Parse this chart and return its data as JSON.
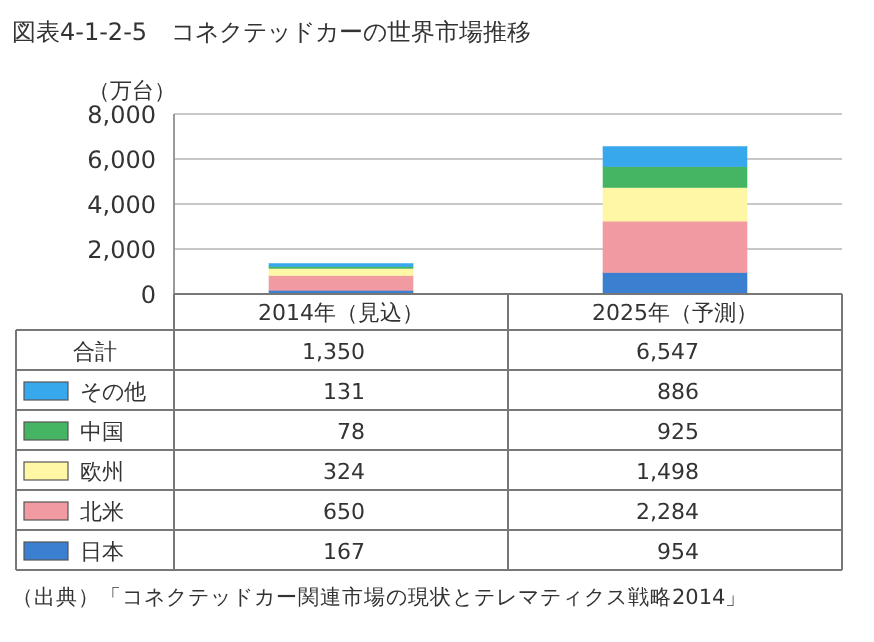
{
  "chart_data": {
    "type": "bar",
    "stacked": true,
    "title": "図表4-1-2-5　コネクテッドカーの世界市場推移",
    "ylabel": "（万台）",
    "categories": [
      "2014年（見込）",
      "2025年（予測）"
    ],
    "ylim": [
      0,
      8000
    ],
    "yticks": [
      0,
      {
        "value": 2000,
        "label": "2,000"
      },
      {
        "value": 4000,
        "label": "4,000"
      },
      {
        "value": 6000,
        "label": "6,000"
      },
      {
        "value": 8000,
        "label": "8,000"
      }
    ],
    "grid": "y",
    "legend": "bottom",
    "legend_title": "合計",
    "totals": [
      "1,350",
      "6,547"
    ],
    "series": [
      {
        "name": "日本",
        "color": "#3a7fd0",
        "values": [
          167,
          954
        ],
        "value_labels": [
          "167",
          "954"
        ]
      },
      {
        "name": "北米",
        "color": "#f29aa2",
        "values": [
          650,
          2284
        ],
        "value_labels": [
          "650",
          "2,284"
        ]
      },
      {
        "name": "欧州",
        "color": "#fff6a6",
        "values": [
          324,
          1498
        ],
        "value_labels": [
          "324",
          "1,498"
        ]
      },
      {
        "name": "中国",
        "color": "#46b563",
        "values": [
          78,
          925
        ],
        "value_labels": [
          "78",
          "925"
        ]
      },
      {
        "name": "その他",
        "color": "#38a8ec",
        "values": [
          131,
          886
        ],
        "value_labels": [
          "131",
          "886"
        ]
      }
    ],
    "annotations": [
      "（出典）「コネクテッドカー関連市場の現状とテレマティクス戦略2014」"
    ]
  }
}
